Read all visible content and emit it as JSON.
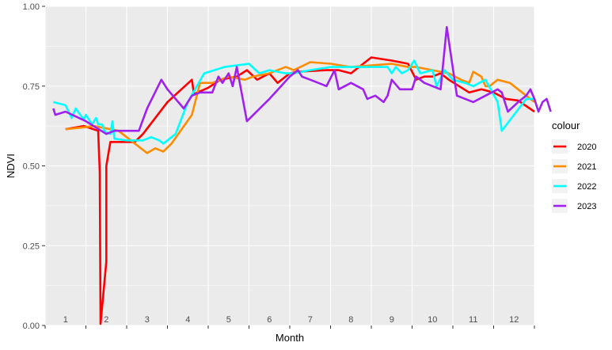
{
  "chart_data": {
    "type": "line",
    "title": "",
    "xlabel": "Month",
    "ylabel": "NDVI",
    "ylim": [
      0,
      1
    ],
    "xlim": [
      0.5,
      12.5
    ],
    "y_ticks": [
      "0.00",
      "0.25",
      "0.50",
      "0.75",
      "1.00"
    ],
    "month_labels": [
      "1",
      "2",
      "3",
      "4",
      "5",
      "6",
      "7",
      "8",
      "9",
      "10",
      "11",
      "12"
    ],
    "legend_title": "colour",
    "legend_position": "right",
    "grid": true,
    "panel_background": "#EBEBEB",
    "series": [
      {
        "name": "2020",
        "color": "#FF0000",
        "points": [
          [
            1.0,
            0.615
          ],
          [
            1.45,
            0.625
          ],
          [
            1.8,
            0.61
          ],
          [
            1.84,
            0.48
          ],
          [
            1.86,
            0.005
          ],
          [
            2.0,
            0.2
          ],
          [
            2.0,
            0.5
          ],
          [
            2.1,
            0.575
          ],
          [
            2.6,
            0.575
          ],
          [
            2.7,
            0.575
          ],
          [
            2.9,
            0.6
          ],
          [
            3.5,
            0.7
          ],
          [
            4.1,
            0.77
          ],
          [
            4.15,
            0.725
          ],
          [
            4.5,
            0.745
          ],
          [
            4.8,
            0.77
          ],
          [
            5.2,
            0.78
          ],
          [
            5.45,
            0.8
          ],
          [
            5.7,
            0.77
          ],
          [
            6.0,
            0.79
          ],
          [
            6.2,
            0.76
          ],
          [
            6.5,
            0.79
          ],
          [
            6.7,
            0.795
          ],
          [
            7.4,
            0.8
          ],
          [
            7.7,
            0.8
          ],
          [
            8.0,
            0.79
          ],
          [
            8.5,
            0.84
          ],
          [
            9.0,
            0.83
          ],
          [
            9.4,
            0.82
          ],
          [
            9.6,
            0.77
          ],
          [
            9.8,
            0.78
          ],
          [
            10.0,
            0.78
          ],
          [
            10.2,
            0.79
          ],
          [
            10.4,
            0.77
          ],
          [
            10.9,
            0.73
          ],
          [
            11.2,
            0.74
          ],
          [
            11.5,
            0.73
          ],
          [
            11.8,
            0.71
          ],
          [
            12.1,
            0.705
          ],
          [
            12.5,
            0.67
          ]
        ]
      },
      {
        "name": "2021",
        "color": "#FF8C00",
        "points": [
          [
            1.0,
            0.615
          ],
          [
            1.4,
            0.62
          ],
          [
            1.7,
            0.625
          ],
          [
            2.1,
            0.615
          ],
          [
            2.3,
            0.61
          ],
          [
            2.7,
            0.57
          ],
          [
            3.0,
            0.54
          ],
          [
            3.2,
            0.555
          ],
          [
            3.4,
            0.545
          ],
          [
            3.6,
            0.57
          ],
          [
            4.1,
            0.66
          ],
          [
            4.3,
            0.76
          ],
          [
            4.6,
            0.76
          ],
          [
            5.0,
            0.78
          ],
          [
            5.4,
            0.77
          ],
          [
            5.6,
            0.78
          ],
          [
            6.0,
            0.79
          ],
          [
            6.4,
            0.81
          ],
          [
            6.6,
            0.8
          ],
          [
            7.0,
            0.825
          ],
          [
            7.5,
            0.82
          ],
          [
            8.0,
            0.81
          ],
          [
            8.5,
            0.815
          ],
          [
            9.0,
            0.82
          ],
          [
            9.4,
            0.81
          ],
          [
            9.6,
            0.81
          ],
          [
            10.0,
            0.8
          ],
          [
            10.4,
            0.79
          ],
          [
            10.7,
            0.77
          ],
          [
            10.9,
            0.76
          ],
          [
            11.0,
            0.795
          ],
          [
            11.2,
            0.78
          ],
          [
            11.3,
            0.75
          ],
          [
            11.4,
            0.75
          ],
          [
            11.6,
            0.77
          ],
          [
            11.9,
            0.76
          ],
          [
            12.2,
            0.73
          ],
          [
            12.5,
            0.7
          ]
        ]
      },
      {
        "name": "2022",
        "color": "#00FFFF",
        "points": [
          [
            0.7,
            0.7
          ],
          [
            1.0,
            0.69
          ],
          [
            1.15,
            0.65
          ],
          [
            1.25,
            0.68
          ],
          [
            1.45,
            0.645
          ],
          [
            1.5,
            0.66
          ],
          [
            1.65,
            0.63
          ],
          [
            1.75,
            0.65
          ],
          [
            1.8,
            0.63
          ],
          [
            1.9,
            0.63
          ],
          [
            1.95,
            0.61
          ],
          [
            2.0,
            0.605
          ],
          [
            2.1,
            0.6
          ],
          [
            2.15,
            0.64
          ],
          [
            2.2,
            0.585
          ],
          [
            2.5,
            0.58
          ],
          [
            2.9,
            0.58
          ],
          [
            3.1,
            0.59
          ],
          [
            3.3,
            0.58
          ],
          [
            3.4,
            0.57
          ],
          [
            3.7,
            0.6
          ],
          [
            4.0,
            0.7
          ],
          [
            4.4,
            0.79
          ],
          [
            4.9,
            0.81
          ],
          [
            5.5,
            0.82
          ],
          [
            5.75,
            0.79
          ],
          [
            6.0,
            0.8
          ],
          [
            6.4,
            0.79
          ],
          [
            6.6,
            0.79
          ],
          [
            7.0,
            0.8
          ],
          [
            7.5,
            0.81
          ],
          [
            8.0,
            0.81
          ],
          [
            8.5,
            0.81
          ],
          [
            8.9,
            0.81
          ],
          [
            9.0,
            0.79
          ],
          [
            9.1,
            0.81
          ],
          [
            9.25,
            0.79
          ],
          [
            9.4,
            0.8
          ],
          [
            9.55,
            0.83
          ],
          [
            9.7,
            0.79
          ],
          [
            10.0,
            0.8
          ],
          [
            10.1,
            0.75
          ],
          [
            10.3,
            0.8
          ],
          [
            10.5,
            0.77
          ],
          [
            10.8,
            0.76
          ],
          [
            11.0,
            0.75
          ],
          [
            11.3,
            0.77
          ],
          [
            11.6,
            0.7
          ],
          [
            11.7,
            0.61
          ],
          [
            12.0,
            0.66
          ],
          [
            12.3,
            0.71
          ],
          [
            12.5,
            0.71
          ]
        ]
      },
      {
        "name": "2023",
        "color": "#A020F0",
        "points": [
          [
            0.7,
            0.68
          ],
          [
            0.75,
            0.66
          ],
          [
            1.0,
            0.67
          ],
          [
            1.5,
            0.64
          ],
          [
            2.0,
            0.6
          ],
          [
            2.2,
            0.61
          ],
          [
            2.4,
            0.61
          ],
          [
            2.8,
            0.61
          ],
          [
            3.0,
            0.68
          ],
          [
            3.35,
            0.77
          ],
          [
            3.5,
            0.74
          ],
          [
            3.9,
            0.68
          ],
          [
            4.1,
            0.72
          ],
          [
            4.3,
            0.73
          ],
          [
            4.6,
            0.73
          ],
          [
            4.75,
            0.78
          ],
          [
            4.85,
            0.76
          ],
          [
            5.0,
            0.79
          ],
          [
            5.1,
            0.75
          ],
          [
            5.2,
            0.81
          ],
          [
            5.45,
            0.64
          ],
          [
            6.0,
            0.71
          ],
          [
            6.5,
            0.78
          ],
          [
            6.7,
            0.8
          ],
          [
            6.8,
            0.78
          ],
          [
            7.0,
            0.77
          ],
          [
            7.2,
            0.76
          ],
          [
            7.4,
            0.75
          ],
          [
            7.6,
            0.8
          ],
          [
            7.7,
            0.74
          ],
          [
            8.0,
            0.76
          ],
          [
            8.3,
            0.74
          ],
          [
            8.4,
            0.71
          ],
          [
            8.6,
            0.72
          ],
          [
            8.8,
            0.7
          ],
          [
            8.9,
            0.72
          ],
          [
            9.0,
            0.77
          ],
          [
            9.2,
            0.74
          ],
          [
            9.5,
            0.74
          ],
          [
            9.6,
            0.78
          ],
          [
            9.8,
            0.76
          ],
          [
            10.0,
            0.75
          ],
          [
            10.2,
            0.74
          ],
          [
            10.35,
            0.935
          ],
          [
            10.6,
            0.72
          ],
          [
            11.0,
            0.7
          ],
          [
            11.3,
            0.72
          ],
          [
            11.6,
            0.74
          ],
          [
            11.7,
            0.73
          ],
          [
            11.85,
            0.67
          ],
          [
            12.1,
            0.7
          ],
          [
            12.3,
            0.72
          ],
          [
            12.4,
            0.74
          ],
          [
            12.5,
            0.71
          ],
          [
            12.6,
            0.67
          ],
          [
            12.7,
            0.7
          ],
          [
            12.8,
            0.71
          ],
          [
            12.9,
            0.67
          ]
        ]
      }
    ]
  }
}
